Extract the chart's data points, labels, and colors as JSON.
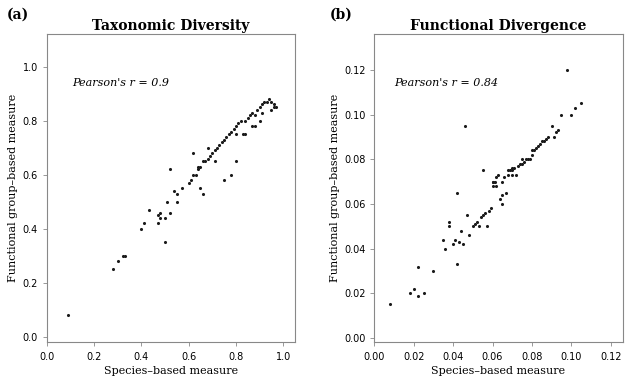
{
  "panel_a": {
    "title": "Taxonomic Diversity",
    "label": "(a)",
    "pearson": "Pearson's r = 0.9",
    "xlabel": "Species–based measure",
    "ylabel": "Functional group–based measure",
    "xlim": [
      0.0,
      1.05
    ],
    "ylim": [
      -0.02,
      1.12
    ],
    "xticks": [
      0.0,
      0.2,
      0.4,
      0.6,
      0.8,
      1.0
    ],
    "yticks": [
      0.0,
      0.2,
      0.4,
      0.6,
      0.8,
      1.0
    ],
    "x": [
      0.09,
      0.28,
      0.3,
      0.32,
      0.33,
      0.4,
      0.41,
      0.43,
      0.47,
      0.48,
      0.5,
      0.5,
      0.52,
      0.54,
      0.55,
      0.57,
      0.6,
      0.61,
      0.62,
      0.63,
      0.64,
      0.64,
      0.65,
      0.66,
      0.67,
      0.68,
      0.69,
      0.7,
      0.71,
      0.72,
      0.73,
      0.74,
      0.75,
      0.76,
      0.77,
      0.78,
      0.79,
      0.8,
      0.8,
      0.81,
      0.82,
      0.83,
      0.84,
      0.85,
      0.86,
      0.87,
      0.87,
      0.88,
      0.89,
      0.9,
      0.91,
      0.91,
      0.92,
      0.93,
      0.94,
      0.95,
      0.95,
      0.96,
      0.96,
      0.97,
      0.47,
      0.48,
      0.51,
      0.65,
      0.66,
      0.71,
      0.75,
      0.52,
      0.55,
      0.62,
      0.68,
      0.78,
      0.8,
      0.84,
      0.88,
      0.9
    ],
    "y": [
      0.08,
      0.25,
      0.28,
      0.3,
      0.3,
      0.4,
      0.42,
      0.47,
      0.45,
      0.46,
      0.35,
      0.44,
      0.46,
      0.54,
      0.53,
      0.55,
      0.57,
      0.58,
      0.6,
      0.6,
      0.62,
      0.63,
      0.63,
      0.65,
      0.65,
      0.66,
      0.67,
      0.68,
      0.69,
      0.7,
      0.71,
      0.72,
      0.73,
      0.74,
      0.75,
      0.76,
      0.77,
      0.75,
      0.78,
      0.79,
      0.8,
      0.75,
      0.8,
      0.81,
      0.82,
      0.78,
      0.83,
      0.82,
      0.84,
      0.85,
      0.83,
      0.86,
      0.87,
      0.87,
      0.88,
      0.84,
      0.87,
      0.86,
      0.85,
      0.85,
      0.42,
      0.44,
      0.5,
      0.55,
      0.53,
      0.65,
      0.58,
      0.62,
      0.5,
      0.68,
      0.7,
      0.6,
      0.65,
      0.75,
      0.78,
      0.8
    ]
  },
  "panel_b": {
    "title": "Functional Divergence",
    "label": "(b)",
    "pearson": "Pearson's r = 0.84",
    "xlabel": "Species–based measure",
    "ylabel": "Functional group–based measure",
    "xlim": [
      0.0,
      0.126
    ],
    "ylim": [
      -0.002,
      0.136
    ],
    "xticks": [
      0.0,
      0.02,
      0.04,
      0.06,
      0.08,
      0.1,
      0.12
    ],
    "yticks": [
      0.0,
      0.02,
      0.04,
      0.06,
      0.08,
      0.1,
      0.12
    ],
    "x": [
      0.008,
      0.018,
      0.02,
      0.022,
      0.022,
      0.025,
      0.03,
      0.035,
      0.036,
      0.038,
      0.04,
      0.041,
      0.042,
      0.043,
      0.044,
      0.045,
      0.046,
      0.05,
      0.051,
      0.052,
      0.053,
      0.054,
      0.055,
      0.056,
      0.057,
      0.058,
      0.059,
      0.06,
      0.06,
      0.061,
      0.062,
      0.063,
      0.064,
      0.065,
      0.065,
      0.066,
      0.067,
      0.068,
      0.068,
      0.069,
      0.07,
      0.07,
      0.071,
      0.072,
      0.073,
      0.074,
      0.075,
      0.076,
      0.077,
      0.078,
      0.079,
      0.08,
      0.08,
      0.081,
      0.082,
      0.083,
      0.084,
      0.085,
      0.086,
      0.087,
      0.088,
      0.09,
      0.091,
      0.092,
      0.093,
      0.095,
      0.098,
      0.1,
      0.102,
      0.105,
      0.038,
      0.042,
      0.047,
      0.048,
      0.055,
      0.06,
      0.062,
      0.065,
      0.07,
      0.075
    ],
    "y": [
      0.015,
      0.02,
      0.022,
      0.019,
      0.032,
      0.02,
      0.03,
      0.044,
      0.04,
      0.052,
      0.042,
      0.044,
      0.033,
      0.043,
      0.048,
      0.042,
      0.095,
      0.05,
      0.051,
      0.052,
      0.05,
      0.054,
      0.055,
      0.056,
      0.05,
      0.057,
      0.058,
      0.07,
      0.07,
      0.07,
      0.072,
      0.073,
      0.062,
      0.064,
      0.07,
      0.072,
      0.065,
      0.073,
      0.075,
      0.075,
      0.073,
      0.075,
      0.076,
      0.073,
      0.077,
      0.078,
      0.078,
      0.079,
      0.08,
      0.08,
      0.08,
      0.082,
      0.084,
      0.084,
      0.085,
      0.086,
      0.087,
      0.088,
      0.088,
      0.089,
      0.09,
      0.095,
      0.09,
      0.092,
      0.093,
      0.1,
      0.12,
      0.1,
      0.103,
      0.105,
      0.05,
      0.065,
      0.055,
      0.046,
      0.075,
      0.068,
      0.068,
      0.06,
      0.076,
      0.08
    ]
  },
  "dot_color": "#1a1a1a",
  "dot_size": 5,
  "bg_color": "#ffffff",
  "spine_color": "#888888",
  "font_size_title": 10,
  "font_size_label": 8,
  "font_size_tick": 7,
  "font_size_annotation": 8,
  "font_size_panel_label": 10
}
